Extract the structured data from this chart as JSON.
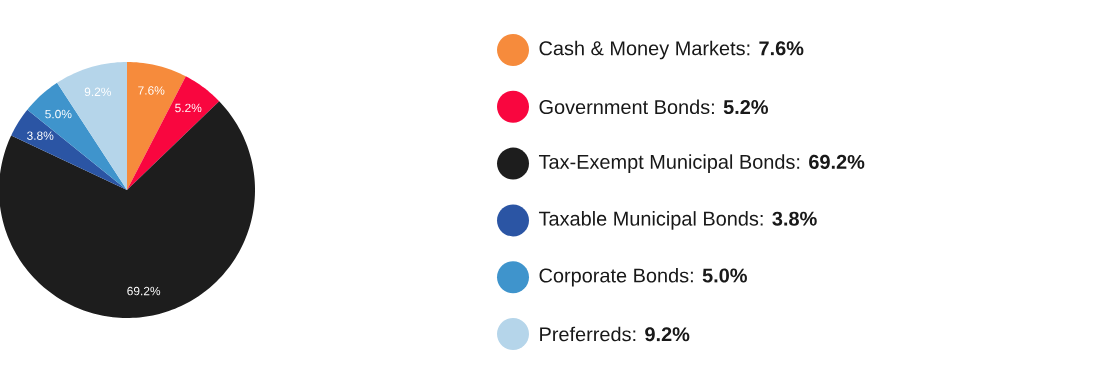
{
  "chart_data": {
    "type": "pie",
    "categories": [
      "Cash & Money Markets: **7.6%**",
      "Government Bonds: **5.2%**",
      "Tax-Exempt Municipal Bonds: **69.2%**",
      "Taxable Municipal Bonds: **3.8%**",
      "Corporate Bonds: **5.0%**",
      "Preferreds: **9.2%**"
    ],
    "values": [
      7.6,
      5.2,
      69.2,
      3.8,
      5.0,
      9.2
    ],
    "value_labels": [
      "7.6%",
      "5.2%",
      "69.2%",
      "3.8%",
      "5.0%",
      "9.2%"
    ],
    "colors": [
      "#f68b3c",
      "#f9063f",
      "#1d1d1d",
      "#2b55a4",
      "#3f94cc",
      "#b5d5ea"
    ],
    "legend": "right"
  }
}
